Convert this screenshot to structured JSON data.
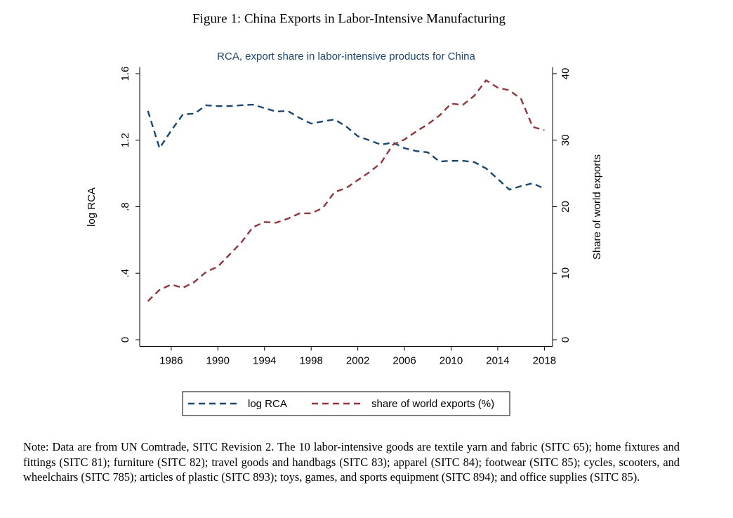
{
  "figure_title": "Figure 1: China Exports in Labor-Intensive Manufacturing",
  "chart_data": {
    "type": "line",
    "title": "RCA, export share in labor-intensive products for China",
    "y_label": "log RCA",
    "y2_label": "Share of world exports",
    "x": [
      1984,
      1985,
      1986,
      1987,
      1988,
      1989,
      1990,
      1991,
      1992,
      1993,
      1994,
      1995,
      1996,
      1997,
      1998,
      1999,
      2000,
      2001,
      2002,
      2003,
      2004,
      2005,
      2006,
      2007,
      2008,
      2009,
      2010,
      2011,
      2012,
      2013,
      2014,
      2015,
      2016,
      2017,
      2018
    ],
    "series": [
      {
        "name": "log RCA",
        "color": "#1a476f",
        "axis": "y",
        "values": [
          1.376,
          1.152,
          1.258,
          1.355,
          1.36,
          1.41,
          1.405,
          1.405,
          1.41,
          1.414,
          1.393,
          1.372,
          1.376,
          1.334,
          1.3,
          1.313,
          1.325,
          1.283,
          1.224,
          1.199,
          1.173,
          1.186,
          1.152,
          1.135,
          1.127,
          1.072,
          1.076,
          1.076,
          1.068,
          1.03,
          0.967,
          0.903,
          0.924,
          0.941,
          0.908
        ]
      },
      {
        "name": "share of world exports (%)",
        "color": "#90353b",
        "axis": "y2",
        "values": [
          5.8,
          7.5,
          8.3,
          7.8,
          8.7,
          10.2,
          11.0,
          12.8,
          14.6,
          16.9,
          17.7,
          17.6,
          18.2,
          19.0,
          19.0,
          19.8,
          22.2,
          22.8,
          24.0,
          25.2,
          26.6,
          29.3,
          30.1,
          31.3,
          32.4,
          33.7,
          35.5,
          35.3,
          36.7,
          39.0,
          37.9,
          37.5,
          36.2,
          32.0,
          31.5
        ]
      }
    ],
    "xlim": [
      1983.3,
      2018.7
    ],
    "xticks": [
      1986,
      1990,
      1994,
      1998,
      2002,
      2006,
      2010,
      2014,
      2018
    ],
    "ylim": [
      -0.04,
      1.64
    ],
    "yticks": [
      0,
      {
        "value": 0.4,
        "label": ".4"
      },
      {
        "value": 0.8,
        "label": ".8"
      },
      1.2,
      1.6
    ],
    "y2lim": [
      -1,
      41
    ],
    "y2ticks": [
      0,
      10,
      20,
      30,
      40
    ],
    "dashed": true,
    "grid": false
  },
  "note": "Note: Data are from UN Comtrade, SITC Revision 2. The 10 labor-intensive goods are textile yarn and fabric (SITC 65); home fixtures and fittings (SITC 81); furniture (SITC 82); travel goods and handbags (SITC 83); apparel (SITC 84); footwear (SITC 85); cycles, scooters, and wheelchairs (SITC 785); articles of plastic (SITC 893); toys, games, and sports equipment (SITC 894); and office supplies (SITC 85)."
}
